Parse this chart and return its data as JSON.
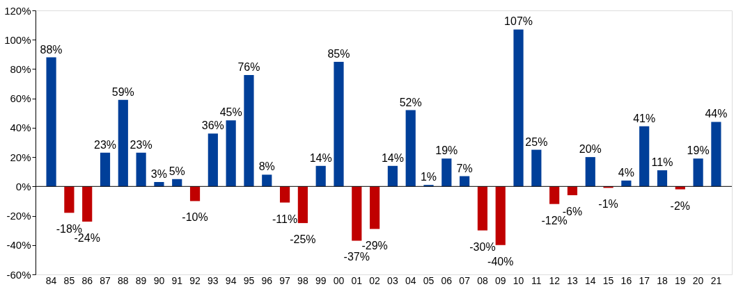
{
  "chart_data": {
    "type": "bar",
    "categories": [
      "84",
      "85",
      "86",
      "87",
      "88",
      "89",
      "90",
      "91",
      "92",
      "93",
      "94",
      "95",
      "96",
      "97",
      "98",
      "99",
      "00",
      "01",
      "02",
      "03",
      "04",
      "05",
      "06",
      "07",
      "08",
      "09",
      "10",
      "11",
      "12",
      "13",
      "14",
      "15",
      "16",
      "17",
      "18",
      "19",
      "20",
      "21"
    ],
    "values": [
      88,
      -18,
      -24,
      23,
      59,
      23,
      3,
      5,
      -10,
      36,
      45,
      76,
      8,
      -11,
      -25,
      14,
      85,
      -37,
      -29,
      14,
      52,
      1,
      19,
      7,
      -30,
      -40,
      107,
      25,
      -12,
      -6,
      20,
      -1,
      4,
      41,
      11,
      -2,
      19,
      44
    ],
    "value_labels": [
      "88%",
      "-18%",
      "-24%",
      "23%",
      "59%",
      "23%",
      "3%",
      "5%",
      "-10%",
      "36%",
      "45%",
      "76%",
      "8%",
      "-11%",
      "-25%",
      "14%",
      "85%",
      "-37%",
      "-29%",
      "14%",
      "52%",
      "1%",
      "19%",
      "7%",
      "-30%",
      "-40%",
      "107%",
      "25%",
      "-12%",
      "-6%",
      "20%",
      "-1%",
      "4%",
      "41%",
      "11%",
      "-2%",
      "19%",
      "44%"
    ],
    "colors": [
      "#003f99",
      "#c00000",
      "#c00000",
      "#003f99",
      "#003f99",
      "#003f99",
      "#003f99",
      "#003f99",
      "#c00000",
      "#003f99",
      "#003f99",
      "#003f99",
      "#003f99",
      "#c00000",
      "#c00000",
      "#003f99",
      "#003f99",
      "#c00000",
      "#c00000",
      "#003f99",
      "#003f99",
      "#003f99",
      "#003f99",
      "#003f99",
      "#c00000",
      "#c00000",
      "#003f99",
      "#003f99",
      "#c00000",
      "#c00000",
      "#003f99",
      "#c00000",
      "#003f99",
      "#003f99",
      "#003f99",
      "#c00000",
      "#003f99",
      "#003f99"
    ],
    "ylim": [
      -60,
      120
    ],
    "yticks": [
      {
        "value": -60,
        "label": "-60%"
      },
      {
        "value": -40,
        "label": "-40%"
      },
      {
        "value": -20,
        "label": "-20%"
      },
      {
        "value": 0,
        "label": "0%"
      },
      {
        "value": 20,
        "label": "20%"
      },
      {
        "value": 40,
        "label": "40%"
      },
      {
        "value": 60,
        "label": "60%"
      },
      {
        "value": 80,
        "label": "80%"
      },
      {
        "value": 100,
        "label": "100%"
      },
      {
        "value": 120,
        "label": "120%"
      }
    ],
    "ref_lines": [
      {
        "axis": "y",
        "value": 0,
        "color": "#000000"
      }
    ],
    "grid": false
  }
}
